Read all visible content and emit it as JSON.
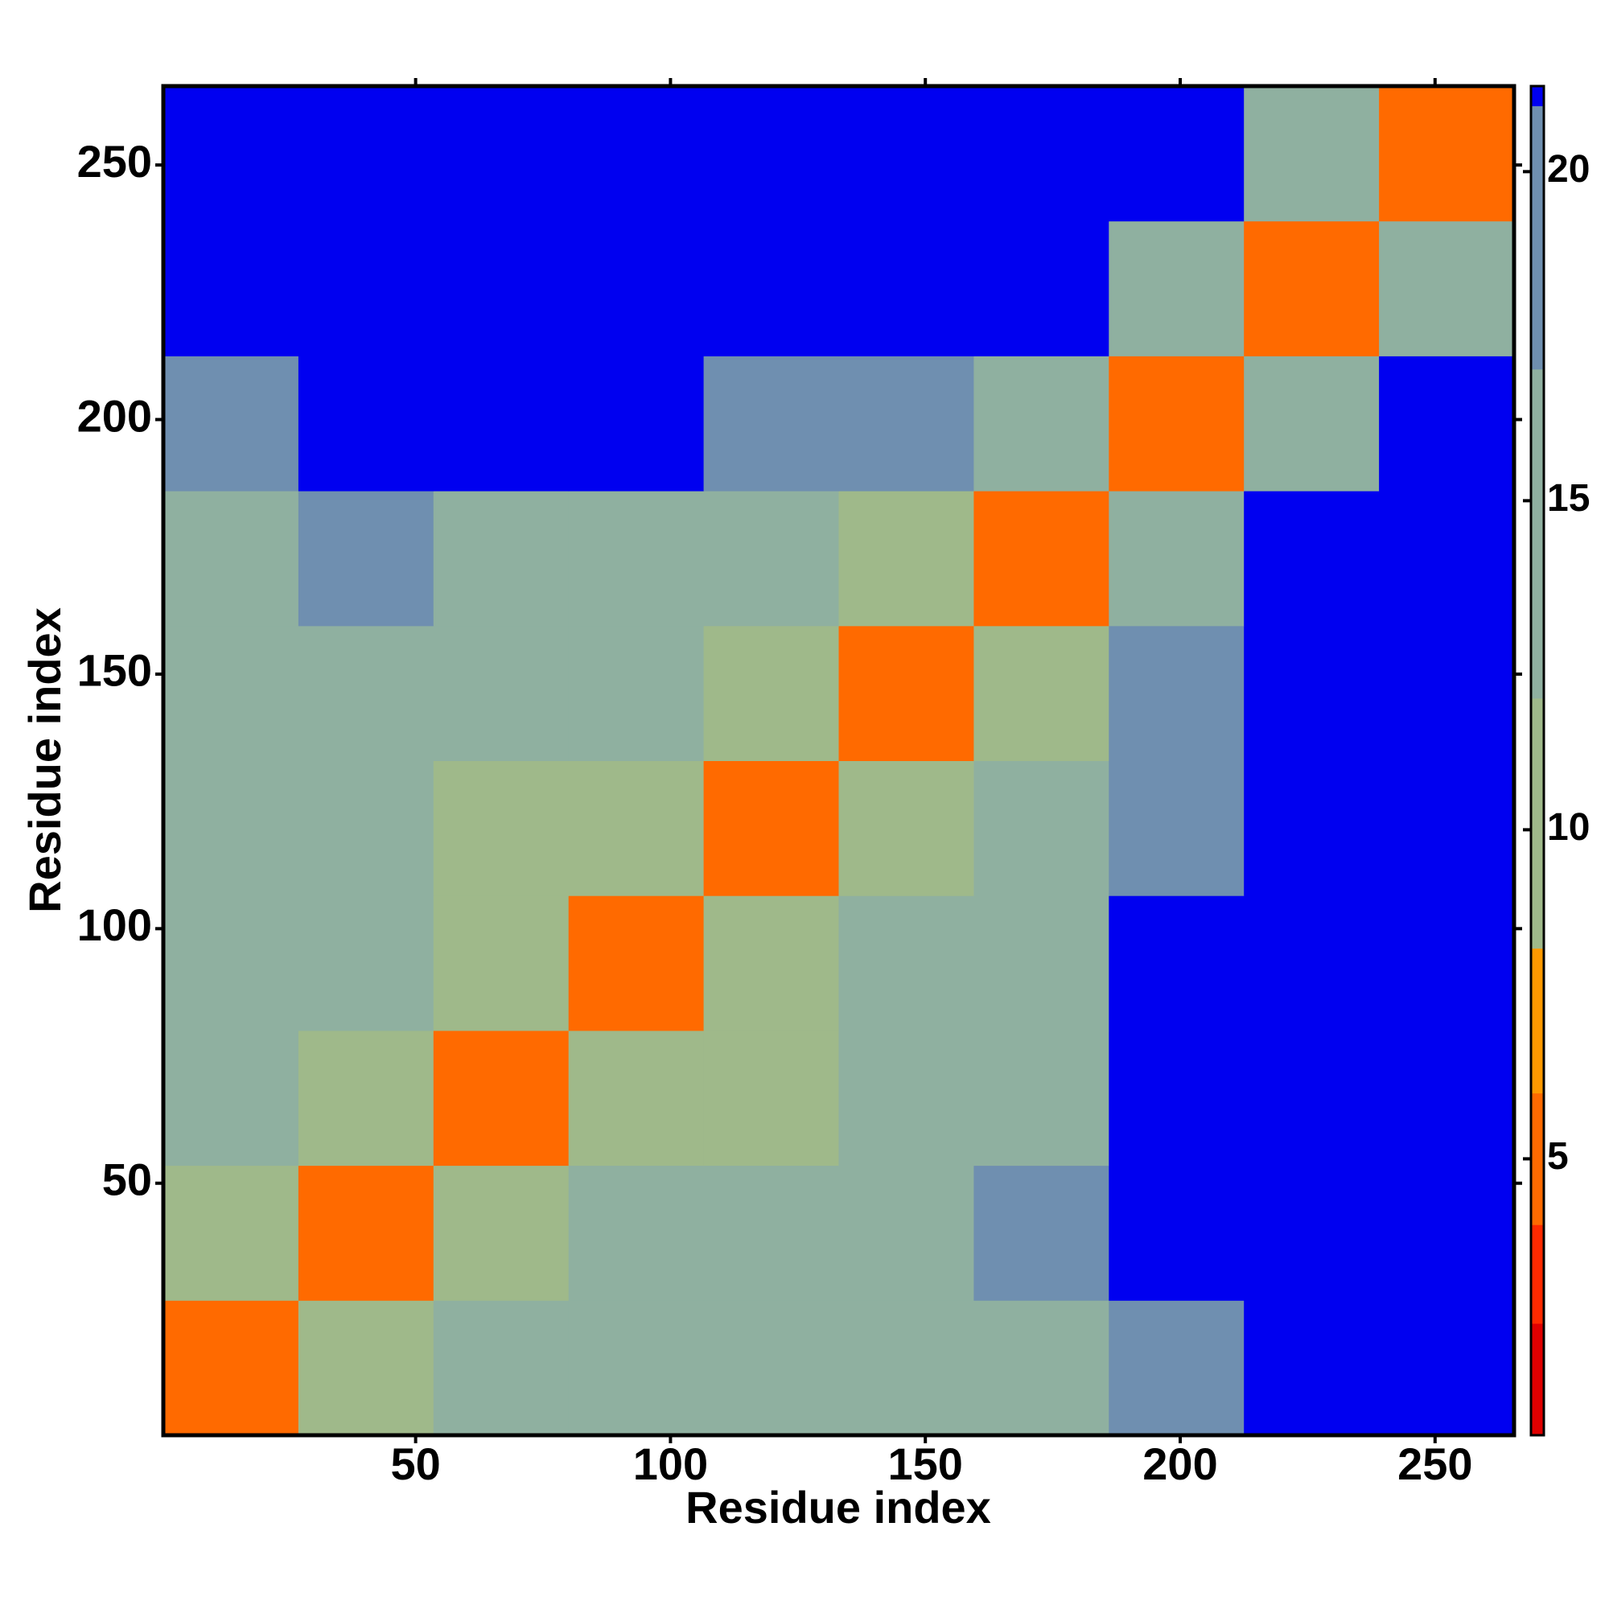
{
  "chart_data": {
    "type": "heatmap",
    "xlabel": "Residue index",
    "ylabel": "Residue index",
    "xlim": [
      0.5,
      265.5
    ],
    "ylim": [
      0.5,
      265.5
    ],
    "xticks": [
      50,
      100,
      150,
      200,
      250
    ],
    "yticks": [
      50,
      100,
      150,
      200,
      250
    ],
    "xbins": [
      0.5,
      27,
      53.5,
      80,
      106.5,
      133,
      159.5,
      186,
      212.5,
      239,
      265.5
    ],
    "ybins": [
      0.5,
      27,
      53.5,
      80,
      106.5,
      133,
      159.5,
      186,
      212.5,
      239,
      265.5
    ],
    "z": [
      [
        5,
        11,
        12,
        14,
        15,
        14,
        14,
        19,
        21,
        21
      ],
      [
        11,
        5,
        10,
        12,
        16,
        15,
        17,
        21,
        21,
        21
      ],
      [
        12,
        10,
        5,
        9,
        10,
        14,
        15,
        21,
        21,
        21
      ],
      [
        14,
        12,
        9,
        5,
        10,
        15,
        16,
        21,
        21,
        21
      ],
      [
        15,
        16,
        10,
        10,
        5,
        9,
        12,
        19,
        21,
        21
      ],
      [
        14,
        15,
        14,
        15,
        9,
        5,
        10,
        17,
        21,
        21
      ],
      [
        14,
        17,
        15,
        16,
        12,
        10,
        5,
        12,
        21,
        21
      ],
      [
        19,
        21,
        21,
        21,
        19,
        17,
        12,
        5,
        12,
        21
      ],
      [
        21,
        21,
        21,
        21,
        21,
        21,
        21,
        12,
        5,
        12
      ],
      [
        21,
        21,
        21,
        21,
        21,
        21,
        21,
        21,
        12,
        5
      ]
    ],
    "clim": [
      0.8,
      21.3
    ],
    "cticks": [
      5,
      10,
      15,
      20
    ],
    "colorbar_stops": [
      {
        "value": 0.8,
        "color": "#e00000"
      },
      {
        "value": 2.5,
        "color": "#ff2a00"
      },
      {
        "value": 4,
        "color": "#ff6a00"
      },
      {
        "value": 6,
        "color": "#ff9900"
      },
      {
        "value": 8.2,
        "color": "#9fb98a"
      },
      {
        "value": 12,
        "color": "#8fb0a0"
      },
      {
        "value": 17,
        "color": "#6f8fb0"
      },
      {
        "value": 21,
        "color": "#0000f0"
      }
    ]
  }
}
